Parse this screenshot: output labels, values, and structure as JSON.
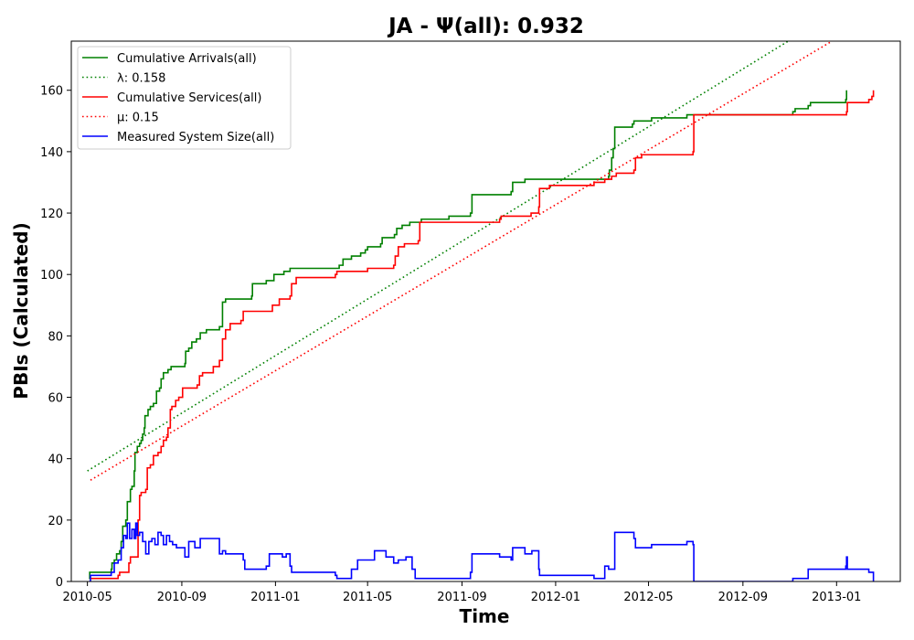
{
  "chart_data": {
    "type": "line",
    "title": "JA -  Ψ(all): 0.932",
    "xlabel": "Time",
    "ylabel": "PBIs (Calculated)",
    "xlim": [
      "2010-04-10",
      "2013-03-25"
    ],
    "ylim": [
      0,
      176
    ],
    "x_ticks": [
      "2010-05",
      "2010-09",
      "2011-01",
      "2011-05",
      "2011-09",
      "2012-01",
      "2012-05",
      "2012-09",
      "2013-01"
    ],
    "y_ticks": [
      0,
      20,
      40,
      60,
      80,
      100,
      120,
      140,
      160
    ],
    "grid": false,
    "legend_position": "top-left",
    "series": [
      {
        "name": "Cumulative Arrivals(all)",
        "color": "#008000",
        "style": "solid",
        "points": [
          [
            "2010-05-03",
            1
          ],
          [
            "2010-05-04",
            3
          ],
          [
            "2010-06-01",
            4
          ],
          [
            "2010-06-02",
            6
          ],
          [
            "2010-06-05",
            7
          ],
          [
            "2010-06-08",
            9
          ],
          [
            "2010-06-12",
            10
          ],
          [
            "2010-06-14",
            13
          ],
          [
            "2010-06-16",
            18
          ],
          [
            "2010-06-20",
            20
          ],
          [
            "2010-06-22",
            26
          ],
          [
            "2010-06-26",
            30
          ],
          [
            "2010-06-28",
            31
          ],
          [
            "2010-07-01",
            36
          ],
          [
            "2010-07-02",
            42
          ],
          [
            "2010-07-05",
            44
          ],
          [
            "2010-07-08",
            45
          ],
          [
            "2010-07-10",
            46
          ],
          [
            "2010-07-12",
            48
          ],
          [
            "2010-07-14",
            50
          ],
          [
            "2010-07-15",
            54
          ],
          [
            "2010-07-19",
            56
          ],
          [
            "2010-07-22",
            57
          ],
          [
            "2010-07-26",
            58
          ],
          [
            "2010-07-30",
            62
          ],
          [
            "2010-08-03",
            63
          ],
          [
            "2010-08-05",
            66
          ],
          [
            "2010-08-08",
            68
          ],
          [
            "2010-08-14",
            69
          ],
          [
            "2010-08-18",
            70
          ],
          [
            "2010-09-05",
            71
          ],
          [
            "2010-09-06",
            75
          ],
          [
            "2010-09-10",
            76
          ],
          [
            "2010-09-14",
            78
          ],
          [
            "2010-09-20",
            79
          ],
          [
            "2010-09-25",
            81
          ],
          [
            "2010-10-03",
            82
          ],
          [
            "2010-10-20",
            83
          ],
          [
            "2010-10-24",
            91
          ],
          [
            "2010-10-28",
            92
          ],
          [
            "2010-12-01",
            93
          ],
          [
            "2010-12-02",
            97
          ],
          [
            "2010-12-20",
            98
          ],
          [
            "2010-12-30",
            100
          ],
          [
            "2011-01-12",
            101
          ],
          [
            "2011-01-20",
            102
          ],
          [
            "2011-03-25",
            103
          ],
          [
            "2011-03-30",
            105
          ],
          [
            "2011-04-10",
            106
          ],
          [
            "2011-04-22",
            107
          ],
          [
            "2011-04-28",
            108
          ],
          [
            "2011-05-01",
            109
          ],
          [
            "2011-05-18",
            110
          ],
          [
            "2011-05-20",
            112
          ],
          [
            "2011-06-05",
            113
          ],
          [
            "2011-06-08",
            115
          ],
          [
            "2011-06-15",
            116
          ],
          [
            "2011-06-25",
            117
          ],
          [
            "2011-07-10",
            118
          ],
          [
            "2011-08-15",
            119
          ],
          [
            "2011-09-12",
            120
          ],
          [
            "2011-09-14",
            126
          ],
          [
            "2011-11-04",
            127
          ],
          [
            "2011-11-06",
            130
          ],
          [
            "2011-11-22",
            131
          ],
          [
            "2011-12-31",
            131
          ],
          [
            "2012-03-10",
            132
          ],
          [
            "2012-03-11",
            134
          ],
          [
            "2012-03-14",
            138
          ],
          [
            "2012-03-16",
            141
          ],
          [
            "2012-03-18",
            148
          ],
          [
            "2012-04-10",
            149
          ],
          [
            "2012-04-12",
            150
          ],
          [
            "2012-05-05",
            151
          ],
          [
            "2012-06-20",
            152
          ],
          [
            "2012-11-05",
            153
          ],
          [
            "2012-11-08",
            154
          ],
          [
            "2012-11-25",
            155
          ],
          [
            "2012-11-28",
            156
          ],
          [
            "2013-01-13",
            157
          ],
          [
            "2013-01-14",
            160
          ]
        ]
      },
      {
        "name": "λ: 0.158",
        "color": "#008000",
        "style": "dotted",
        "points": [
          [
            "2010-05-01",
            36
          ],
          [
            "2012-10-30",
            176
          ]
        ]
      },
      {
        "name": "Cumulative Services(all)",
        "color": "#ff0000",
        "style": "solid",
        "points": [
          [
            "2010-05-04",
            1
          ],
          [
            "2010-06-10",
            2
          ],
          [
            "2010-06-12",
            3
          ],
          [
            "2010-06-24",
            6
          ],
          [
            "2010-06-26",
            8
          ],
          [
            "2010-07-05",
            8
          ],
          [
            "2010-07-06",
            20
          ],
          [
            "2010-07-08",
            28
          ],
          [
            "2010-07-10",
            29
          ],
          [
            "2010-07-16",
            30
          ],
          [
            "2010-07-18",
            37
          ],
          [
            "2010-07-22",
            38
          ],
          [
            "2010-07-26",
            41
          ],
          [
            "2010-08-01",
            42
          ],
          [
            "2010-08-05",
            44
          ],
          [
            "2010-08-08",
            46
          ],
          [
            "2010-08-12",
            47
          ],
          [
            "2010-08-14",
            50
          ],
          [
            "2010-08-17",
            56
          ],
          [
            "2010-08-19",
            57
          ],
          [
            "2010-08-24",
            59
          ],
          [
            "2010-08-28",
            60
          ],
          [
            "2010-09-02",
            63
          ],
          [
            "2010-09-21",
            64
          ],
          [
            "2010-09-24",
            67
          ],
          [
            "2010-09-28",
            68
          ],
          [
            "2010-10-12",
            70
          ],
          [
            "2010-10-20",
            72
          ],
          [
            "2010-10-24",
            79
          ],
          [
            "2010-10-28",
            82
          ],
          [
            "2010-11-03",
            84
          ],
          [
            "2010-11-17",
            85
          ],
          [
            "2010-11-20",
            88
          ],
          [
            "2010-12-28",
            90
          ],
          [
            "2011-01-06",
            92
          ],
          [
            "2011-01-20",
            93
          ],
          [
            "2011-01-22",
            97
          ],
          [
            "2011-01-28",
            99
          ],
          [
            "2011-03-20",
            100
          ],
          [
            "2011-03-22",
            101
          ],
          [
            "2011-05-01",
            102
          ],
          [
            "2011-06-04",
            103
          ],
          [
            "2011-06-06",
            106
          ],
          [
            "2011-06-10",
            109
          ],
          [
            "2011-06-18",
            110
          ],
          [
            "2011-07-06",
            111
          ],
          [
            "2011-07-08",
            117
          ],
          [
            "2011-10-20",
            118
          ],
          [
            "2011-10-22",
            119
          ],
          [
            "2011-11-30",
            120
          ],
          [
            "2011-12-10",
            122
          ],
          [
            "2011-12-11",
            128
          ],
          [
            "2011-12-24",
            129
          ],
          [
            "2012-02-20",
            130
          ],
          [
            "2012-03-05",
            131
          ],
          [
            "2012-03-14",
            132
          ],
          [
            "2012-03-20",
            133
          ],
          [
            "2012-04-12",
            134
          ],
          [
            "2012-04-14",
            138
          ],
          [
            "2012-04-22",
            139
          ],
          [
            "2012-06-28",
            140
          ],
          [
            "2012-06-29",
            152
          ],
          [
            "2013-01-14",
            153
          ],
          [
            "2013-01-15",
            156
          ],
          [
            "2013-02-12",
            157
          ],
          [
            "2013-02-16",
            158
          ],
          [
            "2013-02-18",
            160
          ]
        ]
      },
      {
        "name": "μ: 0.15",
        "color": "#ff0000",
        "style": "dotted",
        "points": [
          [
            "2010-05-05",
            33
          ],
          [
            "2012-12-26",
            176
          ]
        ]
      },
      {
        "name": "Measured System Size(all)",
        "color": "#0000ff",
        "style": "solid",
        "points": [
          [
            "2010-05-03",
            0
          ],
          [
            "2010-05-05",
            2
          ],
          [
            "2010-06-01",
            3
          ],
          [
            "2010-06-05",
            6
          ],
          [
            "2010-06-10",
            7
          ],
          [
            "2010-06-14",
            11
          ],
          [
            "2010-06-17",
            15
          ],
          [
            "2010-06-20",
            14
          ],
          [
            "2010-06-22",
            19
          ],
          [
            "2010-06-25",
            14
          ],
          [
            "2010-06-28",
            17
          ],
          [
            "2010-07-01",
            14
          ],
          [
            "2010-07-03",
            19
          ],
          [
            "2010-07-05",
            15
          ],
          [
            "2010-07-08",
            16
          ],
          [
            "2010-07-12",
            13
          ],
          [
            "2010-07-16",
            9
          ],
          [
            "2010-07-20",
            13
          ],
          [
            "2010-07-24",
            14
          ],
          [
            "2010-07-28",
            12
          ],
          [
            "2010-08-01",
            16
          ],
          [
            "2010-08-05",
            15
          ],
          [
            "2010-08-08",
            12
          ],
          [
            "2010-08-12",
            15
          ],
          [
            "2010-08-16",
            13
          ],
          [
            "2010-08-20",
            12
          ],
          [
            "2010-08-25",
            11
          ],
          [
            "2010-09-05",
            8
          ],
          [
            "2010-09-10",
            13
          ],
          [
            "2010-09-18",
            11
          ],
          [
            "2010-09-25",
            14
          ],
          [
            "2010-10-05",
            14
          ],
          [
            "2010-10-20",
            9
          ],
          [
            "2010-10-24",
            10
          ],
          [
            "2010-10-28",
            9
          ],
          [
            "2010-11-20",
            7
          ],
          [
            "2010-11-22",
            4
          ],
          [
            "2010-12-20",
            5
          ],
          [
            "2010-12-24",
            9
          ],
          [
            "2011-01-10",
            8
          ],
          [
            "2011-01-15",
            9
          ],
          [
            "2011-01-20",
            5
          ],
          [
            "2011-01-22",
            3
          ],
          [
            "2011-03-20",
            2
          ],
          [
            "2011-03-22",
            1
          ],
          [
            "2011-04-10",
            4
          ],
          [
            "2011-04-18",
            7
          ],
          [
            "2011-05-01",
            7
          ],
          [
            "2011-05-10",
            10
          ],
          [
            "2011-05-25",
            8
          ],
          [
            "2011-06-04",
            6
          ],
          [
            "2011-06-10",
            7
          ],
          [
            "2011-06-20",
            8
          ],
          [
            "2011-06-28",
            4
          ],
          [
            "2011-07-02",
            1
          ],
          [
            "2011-09-12",
            3
          ],
          [
            "2011-09-14",
            9
          ],
          [
            "2011-10-20",
            8
          ],
          [
            "2011-11-04",
            7
          ],
          [
            "2011-11-06",
            11
          ],
          [
            "2011-11-22",
            9
          ],
          [
            "2011-12-01",
            10
          ],
          [
            "2011-12-10",
            4
          ],
          [
            "2011-12-11",
            2
          ],
          [
            "2012-02-20",
            1
          ],
          [
            "2012-03-05",
            5
          ],
          [
            "2012-03-10",
            4
          ],
          [
            "2012-03-18",
            16
          ],
          [
            "2012-04-12",
            14
          ],
          [
            "2012-04-14",
            11
          ],
          [
            "2012-04-22",
            11
          ],
          [
            "2012-05-05",
            12
          ],
          [
            "2012-06-20",
            13
          ],
          [
            "2012-06-28",
            12
          ],
          [
            "2012-06-29",
            0
          ],
          [
            "2012-11-05",
            1
          ],
          [
            "2012-11-25",
            4
          ],
          [
            "2013-01-13",
            5
          ],
          [
            "2013-01-14",
            8
          ],
          [
            "2013-01-15",
            4
          ],
          [
            "2013-02-12",
            3
          ],
          [
            "2013-02-18",
            0
          ]
        ]
      }
    ]
  }
}
